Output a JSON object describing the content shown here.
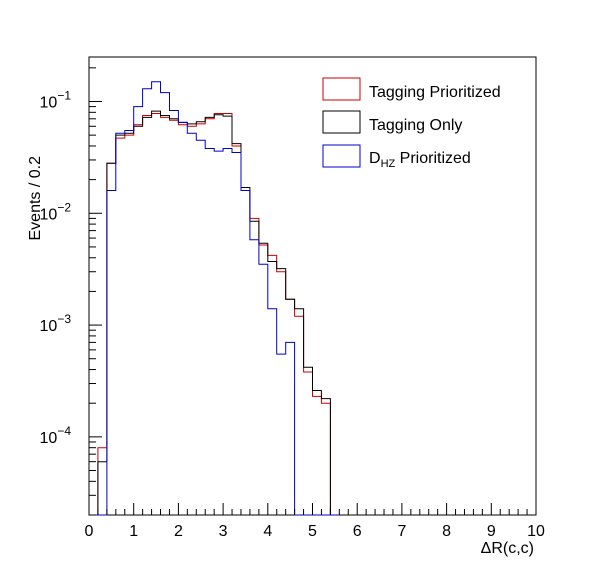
{
  "chart_data": {
    "type": "line",
    "xlabel": "ΔR(c,c)",
    "ylabel": "Events / 0.2",
    "xlim": [
      0,
      10
    ],
    "ylim": [
      2e-05,
      0.25
    ],
    "yscale": "log",
    "grid": false,
    "legend_position": "top-right",
    "bin_width": 0.2,
    "bin_edges": [
      0.0,
      0.2,
      0.4,
      0.6,
      0.8,
      1.0,
      1.2,
      1.4,
      1.6,
      1.8,
      2.0,
      2.2,
      2.4,
      2.6,
      2.8,
      3.0,
      3.2,
      3.4,
      3.6,
      3.8,
      4.0,
      4.2,
      4.4,
      4.6,
      4.8,
      5.0,
      5.2,
      5.4,
      5.6
    ],
    "x_ticks": [
      "0",
      "1",
      "2",
      "3",
      "4",
      "5",
      "6",
      "7",
      "8",
      "9",
      "10"
    ],
    "y_ticks": [
      {
        "value": 0.0001,
        "mantissa": "10",
        "exp": "−4"
      },
      {
        "value": 0.001,
        "mantissa": "10",
        "exp": "−3"
      },
      {
        "value": 0.01,
        "mantissa": "10",
        "exp": "−2"
      },
      {
        "value": 0.1,
        "mantissa": "10",
        "exp": "−1"
      }
    ],
    "series": [
      {
        "name": "Tagging Prioritized",
        "color": "#cc0000",
        "values": [
          0.0,
          8e-05,
          0.028,
          0.047,
          0.05,
          0.062,
          0.075,
          0.078,
          0.072,
          0.068,
          0.062,
          0.06,
          0.063,
          0.07,
          0.078,
          0.078,
          0.04,
          0.016,
          0.009,
          0.0052,
          0.0042,
          0.003,
          0.0017,
          0.0012,
          0.00038,
          0.00023,
          0.0002,
          0.0
        ]
      },
      {
        "name": "Tagging Only",
        "color": "#000000",
        "values": [
          0.0,
          6e-05,
          0.028,
          0.05,
          0.052,
          0.06,
          0.072,
          0.082,
          0.075,
          0.07,
          0.065,
          0.063,
          0.066,
          0.072,
          0.076,
          0.074,
          0.042,
          0.017,
          0.0085,
          0.0054,
          0.0037,
          0.0032,
          0.0017,
          0.0014,
          0.00042,
          0.00026,
          0.00022,
          0.0
        ]
      },
      {
        "name": "D_HZ Prioritized",
        "color": "#0000cc",
        "values": [
          0.0,
          0.0,
          0.016,
          0.052,
          0.055,
          0.09,
          0.13,
          0.15,
          0.12,
          0.083,
          0.065,
          0.052,
          0.045,
          0.038,
          0.036,
          0.038,
          0.035,
          0.016,
          0.0058,
          0.0035,
          0.0014,
          0.00055,
          0.0007,
          0.0,
          0.0,
          0.0,
          0.0,
          0.0
        ]
      }
    ],
    "legend": [
      {
        "label": "Tagging Prioritized",
        "color": "#cc0000"
      },
      {
        "label": "Tagging Only",
        "color": "#000000"
      },
      {
        "label_main": "D",
        "label_sub": "HZ",
        "label_rest": " Prioritized",
        "color": "#0000cc"
      }
    ]
  }
}
